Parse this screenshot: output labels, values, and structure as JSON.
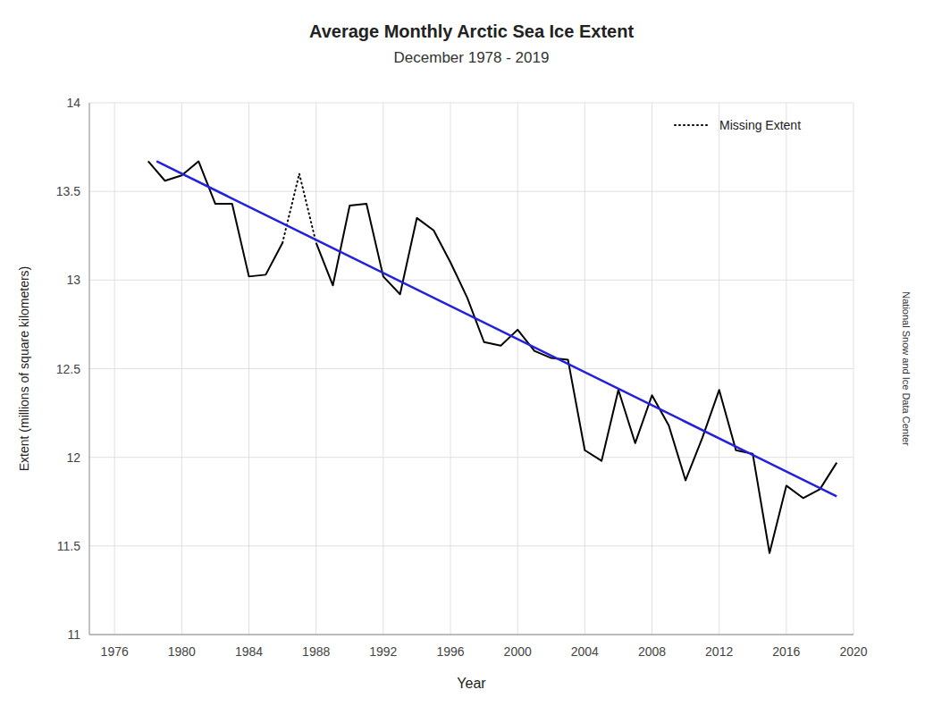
{
  "chart_data": {
    "type": "line",
    "title": "Average Monthly Arctic Sea Ice Extent",
    "subtitle": "December 1978 - 2019",
    "x_label": "Year",
    "y_label": "Extent (millions of square kilometers)",
    "annotation": "National Snow and Ice Data Center",
    "x": [
      1978,
      1979,
      1980,
      1981,
      1982,
      1983,
      1984,
      1985,
      1986,
      1987,
      1988,
      1989,
      1990,
      1991,
      1992,
      1993,
      1994,
      1995,
      1996,
      1997,
      1998,
      1999,
      2000,
      2001,
      2002,
      2003,
      2004,
      2005,
      2006,
      2007,
      2008,
      2009,
      2010,
      2011,
      2012,
      2013,
      2014,
      2015,
      2016,
      2017,
      2018,
      2019
    ],
    "series": [
      {
        "color": "#000000",
        "line_style": "solid",
        "values": [
          13.67,
          13.56,
          13.59,
          13.67,
          13.43,
          13.43,
          13.02,
          13.03,
          13.21,
          null,
          13.21,
          12.97,
          13.42,
          13.43,
          13.02,
          12.92,
          13.35,
          13.28,
          13.1,
          12.9,
          12.65,
          12.63,
          12.72,
          12.6,
          12.56,
          12.55,
          12.04,
          11.98,
          12.38,
          12.08,
          12.35,
          12.18,
          11.87,
          12.11,
          12.38,
          12.04,
          12.02,
          11.46,
          11.84,
          11.77,
          11.82,
          11.97
        ]
      },
      {
        "name": "Missing Extent",
        "color": "#000000",
        "line_style": "dotted",
        "values": [
          null,
          null,
          null,
          null,
          null,
          null,
          null,
          null,
          13.21,
          13.6,
          13.21,
          null,
          null,
          null,
          null,
          null,
          null,
          null,
          null,
          null,
          null,
          null,
          null,
          null,
          null,
          null,
          null,
          null,
          null,
          null,
          null,
          null,
          null,
          null,
          null,
          null,
          null,
          null,
          null,
          null,
          null,
          null
        ]
      },
      {
        "color": "#2222dd",
        "line_style": "solid",
        "x": [
          1978.5,
          2019
        ],
        "values": [
          13.67,
          11.78
        ]
      }
    ],
    "xlim": [
      1974.5,
      2020
    ],
    "xticks": [
      1976,
      1980,
      1984,
      1988,
      1992,
      1996,
      2000,
      2004,
      2008,
      2012,
      2016,
      2020
    ],
    "ylim": [
      11,
      14
    ],
    "yticks": [
      11,
      11.5,
      12,
      12.5,
      13,
      13.5,
      14
    ],
    "grid": true,
    "legend": "upper right"
  }
}
